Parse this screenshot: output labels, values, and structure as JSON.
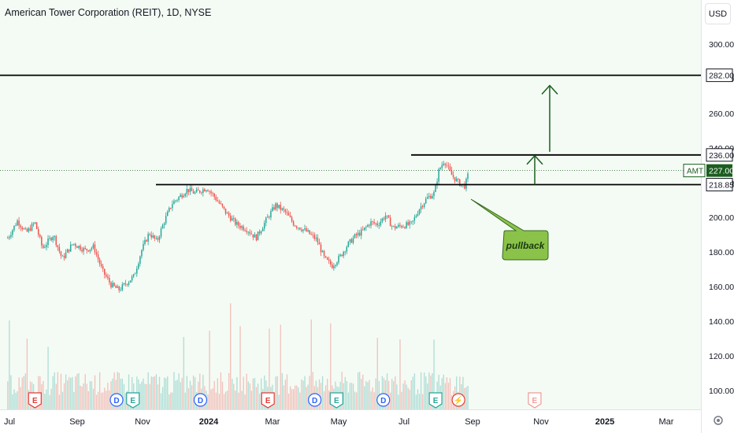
{
  "header": {
    "title": "American Tower Corporation (REIT), 1D, NYSE",
    "currency_button": "USD"
  },
  "chart_data": {
    "type": "candlestick",
    "title": "American Tower Corporation (REIT), 1D, NYSE",
    "symbol": "AMT",
    "currency": "USD",
    "last_price": "227.00",
    "y_ticks": [
      "300.00",
      "280.00",
      "260.00",
      "240.00",
      "220.00",
      "200.00",
      "180.00",
      "160.00",
      "140.00",
      "120.00",
      "100.00"
    ],
    "x_ticks": [
      "Jul",
      "Sep",
      "Nov",
      "2024",
      "Mar",
      "May",
      "Jul",
      "Sep",
      "Nov",
      "2025",
      "Mar"
    ],
    "ylim": [
      95,
      310
    ],
    "grid": false,
    "price_path": [
      [
        "2023-07-03",
        188
      ],
      [
        "2023-07-12",
        198
      ],
      [
        "2023-07-20",
        191
      ],
      [
        "2023-07-28",
        197
      ],
      [
        "2023-08-04",
        182
      ],
      [
        "2023-08-14",
        190
      ],
      [
        "2023-08-22",
        176
      ],
      [
        "2023-09-01",
        185
      ],
      [
        "2023-09-12",
        181
      ],
      [
        "2023-09-20",
        183
      ],
      [
        "2023-09-28",
        169
      ],
      [
        "2023-10-06",
        161
      ],
      [
        "2023-10-13",
        158
      ],
      [
        "2023-10-20",
        162
      ],
      [
        "2023-10-27",
        166
      ],
      [
        "2023-11-03",
        181
      ],
      [
        "2023-11-10",
        191
      ],
      [
        "2023-11-17",
        186
      ],
      [
        "2023-11-24",
        198
      ],
      [
        "2023-12-01",
        208
      ],
      [
        "2023-12-08",
        212
      ],
      [
        "2023-12-15",
        216
      ],
      [
        "2023-12-22",
        214
      ],
      [
        "2024-01-02",
        217
      ],
      [
        "2024-01-10",
        211
      ],
      [
        "2024-01-19",
        203
      ],
      [
        "2024-01-29",
        196
      ],
      [
        "2024-02-08",
        193
      ],
      [
        "2024-02-16",
        188
      ],
      [
        "2024-02-26",
        199
      ],
      [
        "2024-03-05",
        207
      ],
      [
        "2024-03-14",
        203
      ],
      [
        "2024-03-22",
        196
      ],
      [
        "2024-04-02",
        192
      ],
      [
        "2024-04-12",
        187
      ],
      [
        "2024-04-19",
        176
      ],
      [
        "2024-04-26",
        172
      ],
      [
        "2024-05-03",
        177
      ],
      [
        "2024-05-10",
        184
      ],
      [
        "2024-05-17",
        189
      ],
      [
        "2024-05-24",
        192
      ],
      [
        "2024-05-31",
        197
      ],
      [
        "2024-06-07",
        196
      ],
      [
        "2024-06-14",
        201
      ],
      [
        "2024-06-21",
        194
      ],
      [
        "2024-06-28",
        195
      ],
      [
        "2024-07-08",
        196
      ],
      [
        "2024-07-15",
        205
      ],
      [
        "2024-07-22",
        211
      ],
      [
        "2024-07-29",
        214
      ],
      [
        "2024-08-02",
        227
      ],
      [
        "2024-08-07",
        233
      ],
      [
        "2024-08-13",
        225
      ],
      [
        "2024-08-20",
        220
      ],
      [
        "2024-08-26",
        218
      ],
      [
        "2024-08-30",
        227
      ]
    ],
    "horizontal_levels": [
      {
        "value": 282,
        "label": "282.00"
      },
      {
        "value": 236,
        "label": "236.00"
      },
      {
        "value": 218.85,
        "label": "218.85"
      }
    ],
    "annotation": "pullback",
    "events": [
      {
        "date": "2023-07-28",
        "label": "E",
        "kind": "earnings-past"
      },
      {
        "date": "2023-10-11",
        "label": "D",
        "kind": "dividend"
      },
      {
        "date": "2023-10-26",
        "label": "E",
        "kind": "earnings"
      },
      {
        "date": "2023-12-27",
        "label": "D",
        "kind": "dividend"
      },
      {
        "date": "2024-02-27",
        "label": "E",
        "kind": "earnings-past"
      },
      {
        "date": "2024-04-10",
        "label": "D",
        "kind": "dividend"
      },
      {
        "date": "2024-04-30",
        "label": "E",
        "kind": "earnings"
      },
      {
        "date": "2024-06-12",
        "label": "D",
        "kind": "dividend"
      },
      {
        "date": "2024-07-30",
        "label": "E",
        "kind": "earnings"
      },
      {
        "date": "2024-08-20",
        "label": "⚡",
        "kind": "split"
      },
      {
        "date": "2024-10-29",
        "label": "E",
        "kind": "earnings-future"
      }
    ],
    "colors": {
      "up": "#26a69a",
      "down": "#ef5350",
      "background": "#f4fbf4",
      "level_line": "#000000",
      "arrow": "#1b5e20",
      "badge": "#1b5e20",
      "callout_fill": "#8bc34a",
      "price_line": "#1b5e20"
    }
  }
}
